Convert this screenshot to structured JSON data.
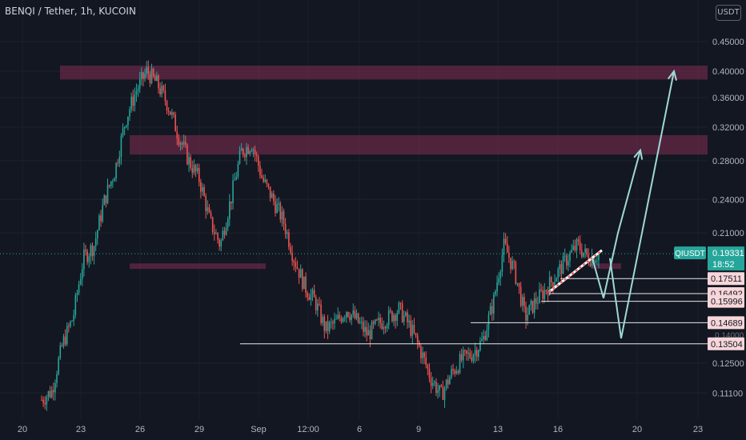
{
  "header": {
    "title": "BENQI / Tether, 1h, KUCOIN",
    "currency_button": "USDT"
  },
  "price_scale_labels": [
    "0.45000",
    "0.40000",
    "0.36000",
    "0.32000",
    "0.28000",
    "0.24000",
    "0.21000",
    "0.12500",
    "0.11100"
  ],
  "time_labels": [
    "20",
    "23",
    "26",
    "29",
    "Sep",
    "12:00",
    "6",
    "9",
    "13",
    "16",
    "20",
    "23"
  ],
  "current_price": {
    "symbol": "QIUSDT",
    "value": "0.19331",
    "countdown": "18:52",
    "color": "#26a69a"
  },
  "level_labels": [
    "0.17511",
    "0.16492",
    "0.15996",
    "0.14689",
    "0.13504"
  ],
  "partial_label": "0.14000",
  "colors": {
    "background": "#131722",
    "up": "#26a69a",
    "down": "#ef5350",
    "zone": "#6b2a48",
    "arrow": "#9fd9d6"
  },
  "chart_data": {
    "type": "candlestick",
    "title": "BENQI / Tether, 1h, KUCOIN",
    "y_scale": "log",
    "ylim": [
      0.098,
      0.5
    ],
    "x_ticks": [
      "20",
      "23",
      "26",
      "29",
      "Sep",
      "12:00",
      "6",
      "9",
      "13",
      "16",
      "20",
      "23"
    ],
    "price_path": [
      [
        0.108,
        0.112,
        0.135,
        0.15,
        0.19,
        0.2,
        0.24,
        0.27,
        0.33,
        0.37,
        0.4,
        0.38
      ],
      [
        0.35,
        0.31,
        0.28,
        0.26,
        0.22,
        0.2,
        0.24,
        0.29,
        0.3,
        0.26,
        0.24,
        0.22
      ],
      [
        0.19,
        0.17,
        0.16,
        0.143,
        0.147,
        0.155,
        0.148,
        0.14,
        0.146,
        0.15,
        0.155,
        0.145
      ],
      [
        0.132,
        0.118,
        0.11,
        0.12,
        0.127,
        0.13,
        0.137,
        0.16,
        0.2,
        0.18,
        0.15,
        0.16
      ],
      [
        0.168,
        0.178,
        0.19,
        0.2,
        0.19,
        0.193
      ]
    ],
    "current_price": 0.19331,
    "resistance_zones": [
      [
        0.387,
        0.409
      ],
      [
        0.287,
        0.31
      ]
    ],
    "support_zone": [
      0.182,
      0.186
    ],
    "horizontal_levels": [
      0.17511,
      0.16492,
      0.15996,
      0.14689,
      0.13504
    ],
    "projected_paths": [
      [
        0.19,
        0.162,
        0.21,
        0.292
      ],
      [
        0.19,
        0.138,
        0.4
      ]
    ]
  }
}
